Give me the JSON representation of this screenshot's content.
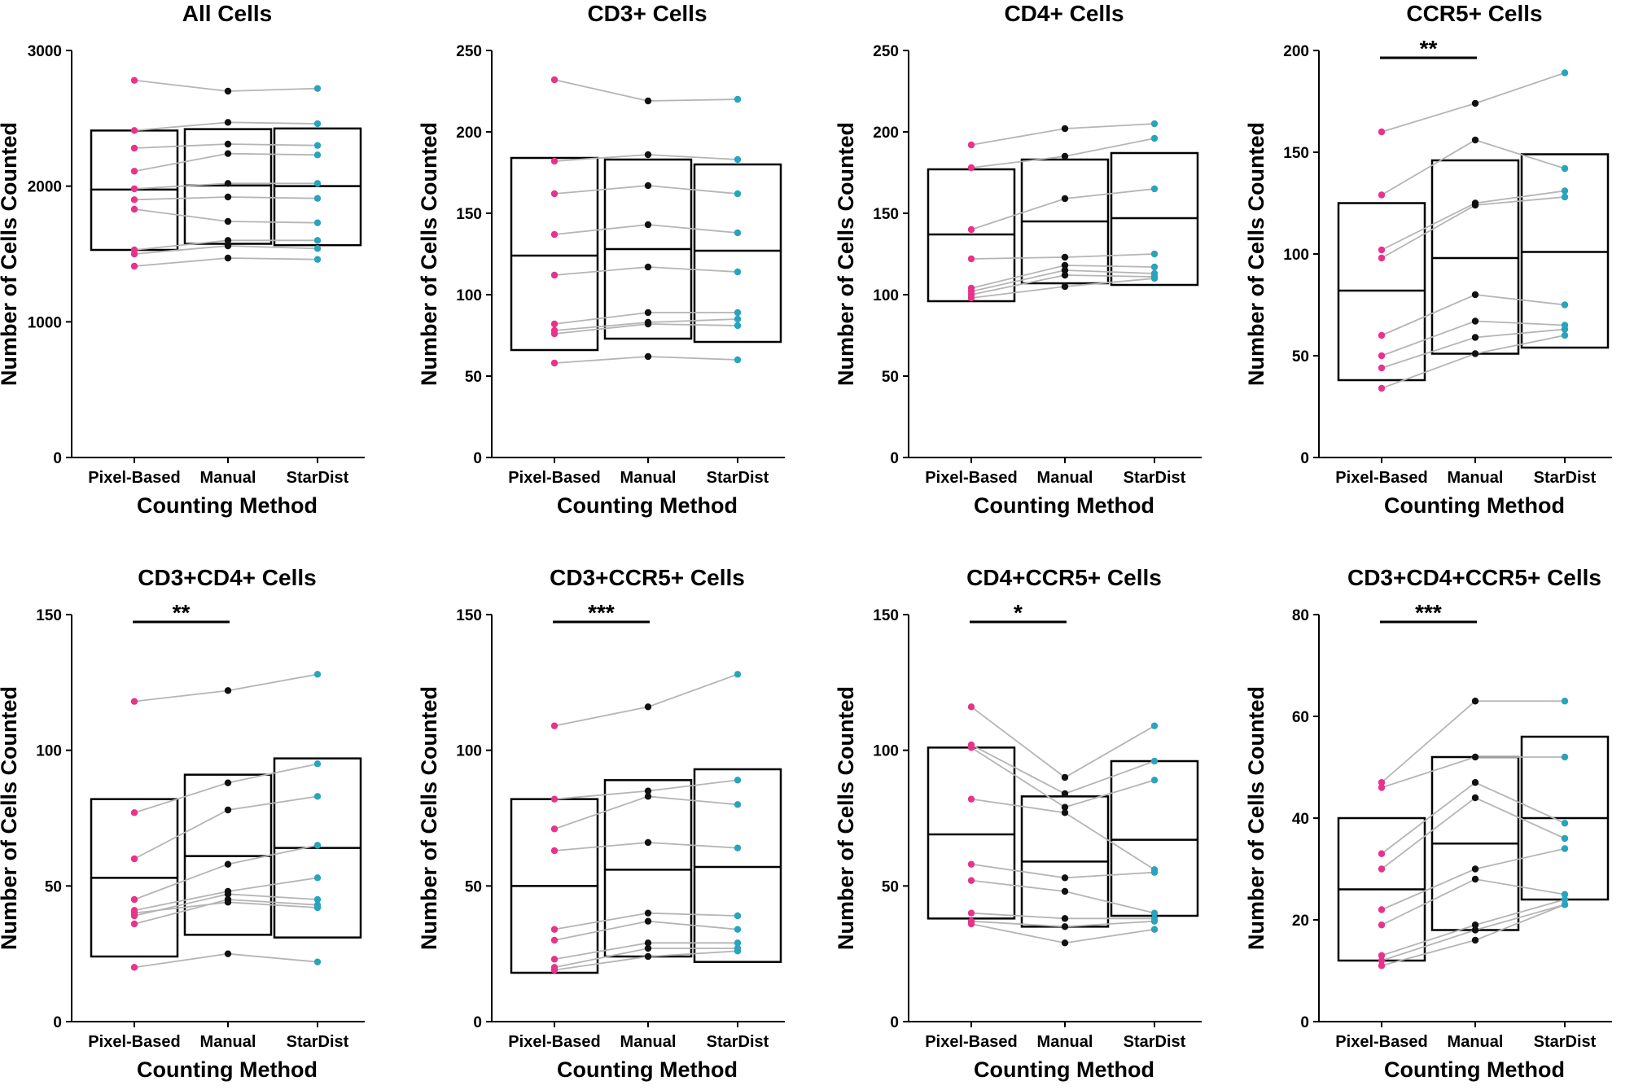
{
  "figure": {
    "layout": "2x4 grid of paired box plots"
  },
  "colors": {
    "Pixel-Based": "#e8338a",
    "Manual": "#111111",
    "StarDist": "#2aa3bd",
    "line": "#b5b5b5",
    "box": "#000000"
  },
  "chart_data": [
    {
      "type": "box_paired",
      "title": "All Cells",
      "xlabel": "Counting Method",
      "ylabel": "Number of Cells Counted",
      "categories": [
        "Pixel-Based",
        "Manual",
        "StarDist"
      ],
      "ylim": [
        0,
        3000
      ],
      "yticks": [
        0,
        1000,
        2000,
        3000
      ],
      "boxes": [
        {
          "q1": 1530,
          "median": 1975,
          "q3": 2410
        },
        {
          "q1": 1575,
          "median": 2005,
          "q3": 2420
        },
        {
          "q1": 1565,
          "median": 2000,
          "q3": 2425
        }
      ],
      "subjects": [
        [
          2780,
          2700,
          2720
        ],
        [
          2410,
          2470,
          2460
        ],
        [
          2280,
          2310,
          2300
        ],
        [
          2110,
          2240,
          2230
        ],
        [
          1980,
          2020,
          2020
        ],
        [
          1900,
          1920,
          1910
        ],
        [
          1830,
          1740,
          1730
        ],
        [
          1530,
          1600,
          1600
        ],
        [
          1500,
          1560,
          1540
        ],
        [
          1410,
          1470,
          1460
        ]
      ],
      "significance": null
    },
    {
      "type": "box_paired",
      "title": "CD3+ Cells",
      "xlabel": "Counting Method",
      "ylabel": "Number of Cells Counted",
      "categories": [
        "Pixel-Based",
        "Manual",
        "StarDist"
      ],
      "ylim": [
        0,
        250
      ],
      "yticks": [
        0,
        50,
        100,
        150,
        200,
        250
      ],
      "boxes": [
        {
          "q1": 66,
          "median": 124,
          "q3": 184
        },
        {
          "q1": 73,
          "median": 128,
          "q3": 183
        },
        {
          "q1": 71,
          "median": 127,
          "q3": 180
        }
      ],
      "subjects": [
        [
          232,
          219,
          220
        ],
        [
          182,
          186,
          183
        ],
        [
          162,
          167,
          162
        ],
        [
          137,
          143,
          138
        ],
        [
          112,
          117,
          114
        ],
        [
          82,
          89,
          89
        ],
        [
          78,
          83,
          85
        ],
        [
          76,
          82,
          81
        ],
        [
          58,
          62,
          60
        ]
      ],
      "significance": null
    },
    {
      "type": "box_paired",
      "title": "CD4+ Cells",
      "xlabel": "Counting Method",
      "ylabel": "Number of Cells Counted",
      "categories": [
        "Pixel-Based",
        "Manual",
        "StarDist"
      ],
      "ylim": [
        0,
        250
      ],
      "yticks": [
        0,
        50,
        100,
        150,
        200,
        250
      ],
      "boxes": [
        {
          "q1": 96,
          "median": 137,
          "q3": 177
        },
        {
          "q1": 107,
          "median": 145,
          "q3": 183
        },
        {
          "q1": 106,
          "median": 147,
          "q3": 187
        }
      ],
      "subjects": [
        [
          192,
          202,
          205
        ],
        [
          178,
          185,
          196
        ],
        [
          140,
          159,
          165
        ],
        [
          122,
          123,
          125
        ],
        [
          104,
          118,
          117
        ],
        [
          102,
          115,
          113
        ],
        [
          100,
          112,
          111
        ],
        [
          98,
          105,
          110
        ]
      ],
      "significance": null
    },
    {
      "type": "box_paired",
      "title": "CCR5+ Cells",
      "xlabel": "Counting Method",
      "ylabel": "Number of Cells Counted",
      "categories": [
        "Pixel-Based",
        "Manual",
        "StarDist"
      ],
      "ylim": [
        0,
        200
      ],
      "yticks": [
        0,
        50,
        100,
        150,
        200
      ],
      "boxes": [
        {
          "q1": 38,
          "median": 82,
          "q3": 125
        },
        {
          "q1": 51,
          "median": 98,
          "q3": 146
        },
        {
          "q1": 54,
          "median": 101,
          "q3": 149
        }
      ],
      "subjects": [
        [
          160,
          174,
          189
        ],
        [
          129,
          156,
          142
        ],
        [
          102,
          125,
          131
        ],
        [
          98,
          124,
          128
        ],
        [
          60,
          80,
          75
        ],
        [
          50,
          67,
          65
        ],
        [
          44,
          59,
          63
        ],
        [
          34,
          51,
          60
        ]
      ],
      "significance": {
        "from": 0,
        "to": 1,
        "label": "**"
      }
    },
    {
      "type": "box_paired",
      "title": "CD3+CD4+ Cells",
      "xlabel": "Counting Method",
      "ylabel": "Number of Cells Counted",
      "categories": [
        "Pixel-Based",
        "Manual",
        "StarDist"
      ],
      "ylim": [
        0,
        150
      ],
      "yticks": [
        0,
        50,
        100,
        150
      ],
      "boxes": [
        {
          "q1": 24,
          "median": 53,
          "q3": 82
        },
        {
          "q1": 32,
          "median": 61,
          "q3": 91
        },
        {
          "q1": 31,
          "median": 64,
          "q3": 97
        }
      ],
      "subjects": [
        [
          118,
          122,
          128
        ],
        [
          77,
          88,
          95
        ],
        [
          60,
          78,
          83
        ],
        [
          45,
          58,
          65
        ],
        [
          41,
          48,
          53
        ],
        [
          39,
          47,
          45
        ],
        [
          36,
          45,
          43
        ],
        [
          40,
          44,
          42
        ],
        [
          20,
          25,
          22
        ]
      ],
      "significance": {
        "from": 0,
        "to": 1,
        "label": "**"
      }
    },
    {
      "type": "box_paired",
      "title": "CD3+CCR5+ Cells",
      "xlabel": "Counting Method",
      "ylabel": "Number of Cells Counted",
      "categories": [
        "Pixel-Based",
        "Manual",
        "StarDist"
      ],
      "ylim": [
        0,
        150
      ],
      "yticks": [
        0,
        50,
        100,
        150
      ],
      "boxes": [
        {
          "q1": 18,
          "median": 50,
          "q3": 82
        },
        {
          "q1": 24,
          "median": 56,
          "q3": 89
        },
        {
          "q1": 22,
          "median": 57,
          "q3": 93
        }
      ],
      "subjects": [
        [
          109,
          116,
          128
        ],
        [
          82,
          85,
          89
        ],
        [
          71,
          83,
          80
        ],
        [
          63,
          66,
          64
        ],
        [
          34,
          40,
          39
        ],
        [
          30,
          37,
          34
        ],
        [
          23,
          29,
          29
        ],
        [
          20,
          27,
          27
        ],
        [
          19,
          24,
          26
        ]
      ],
      "significance": {
        "from": 0,
        "to": 1,
        "label": "***"
      }
    },
    {
      "type": "box_paired",
      "title": "CD4+CCR5+ Cells",
      "xlabel": "Counting Method",
      "ylabel": "Number of Cells Counted",
      "categories": [
        "Pixel-Based",
        "Manual",
        "StarDist"
      ],
      "ylim": [
        0,
        150
      ],
      "yticks": [
        0,
        50,
        100,
        150
      ],
      "boxes": [
        {
          "q1": 38,
          "median": 69,
          "q3": 101
        },
        {
          "q1": 35,
          "median": 59,
          "q3": 83
        },
        {
          "q1": 39,
          "median": 67,
          "q3": 96
        }
      ],
      "subjects": [
        [
          116,
          90,
          109
        ],
        [
          102,
          84,
          96
        ],
        [
          101,
          79,
          89
        ],
        [
          82,
          77,
          56
        ],
        [
          58,
          53,
          55
        ],
        [
          52,
          48,
          40
        ],
        [
          40,
          38,
          38
        ],
        [
          37,
          35,
          37
        ],
        [
          36,
          29,
          34
        ]
      ],
      "significance": {
        "from": 0,
        "to": 1,
        "label": "*"
      }
    },
    {
      "type": "box_paired",
      "title": "CD3+CD4+CCR5+ Cells",
      "xlabel": "Counting Method",
      "ylabel": "Number of Cells Counted",
      "categories": [
        "Pixel-Based",
        "Manual",
        "StarDist"
      ],
      "ylim": [
        0,
        80
      ],
      "yticks": [
        0,
        20,
        40,
        60,
        80
      ],
      "boxes": [
        {
          "q1": 12,
          "median": 26,
          "q3": 40
        },
        {
          "q1": 18,
          "median": 35,
          "q3": 52
        },
        {
          "q1": 24,
          "median": 40,
          "q3": 56
        }
      ],
      "subjects": [
        [
          47,
          63,
          63
        ],
        [
          46,
          52,
          52
        ],
        [
          33,
          47,
          39
        ],
        [
          30,
          44,
          36
        ],
        [
          22,
          30,
          34
        ],
        [
          19,
          28,
          25
        ],
        [
          13,
          19,
          24
        ],
        [
          12,
          18,
          23
        ],
        [
          11,
          16,
          23
        ]
      ],
      "significance": {
        "from": 0,
        "to": 1,
        "label": "***"
      }
    }
  ]
}
